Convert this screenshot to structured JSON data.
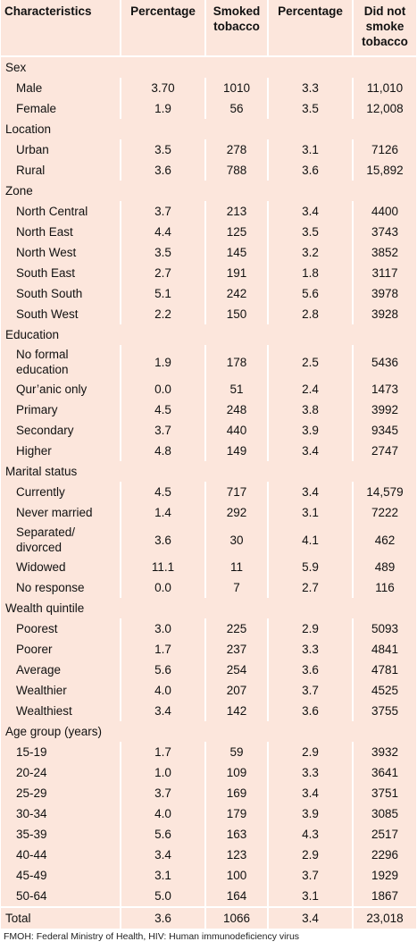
{
  "table": {
    "header": [
      "Characteristics",
      "Percentage",
      "Smoked tobacco",
      "Percentage",
      "Did not smoke tobacco"
    ],
    "rows": [
      [
        "Sex"
      ],
      [
        "Male",
        "3.70",
        "1010",
        "3.3",
        "11,010"
      ],
      [
        "Female",
        "1.9",
        "56",
        "3.5",
        "12,008"
      ],
      [
        "Location"
      ],
      [
        "Urban",
        "3.5",
        "278",
        "3.1",
        "7126"
      ],
      [
        "Rural",
        "3.6",
        "788",
        "3.6",
        "15,892"
      ],
      [
        "Zone"
      ],
      [
        "North Central",
        "3.7",
        "213",
        "3.4",
        "4400"
      ],
      [
        "North East",
        "4.4",
        "125",
        "3.5",
        "3743"
      ],
      [
        "North West",
        "3.5",
        "145",
        "3.2",
        "3852"
      ],
      [
        "South East",
        "2.7",
        "191",
        "1.8",
        "3117"
      ],
      [
        "South South",
        "5.1",
        "242",
        "5.6",
        "3978"
      ],
      [
        "South West",
        "2.2",
        "150",
        "2.8",
        "3928"
      ],
      [
        "Education"
      ],
      [
        "No formal education",
        "1.9",
        "178",
        "2.5",
        "5436"
      ],
      [
        "Qur’anic only",
        "0.0",
        "51",
        "2.4",
        "1473"
      ],
      [
        "Primary",
        "4.5",
        "248",
        "3.8",
        "3992"
      ],
      [
        "Secondary",
        "3.7",
        "440",
        "3.9",
        "9345"
      ],
      [
        "Higher",
        "4.8",
        "149",
        "3.4",
        "2747"
      ],
      [
        "Marital status"
      ],
      [
        "Currently",
        "4.5",
        "717",
        "3.4",
        "14,579"
      ],
      [
        "Never married",
        "1.4",
        "292",
        "3.1",
        "7222"
      ],
      [
        "Separated/ divorced",
        "3.6",
        "30",
        "4.1",
        "462"
      ],
      [
        "Widowed",
        "11.1",
        "11",
        "5.9",
        "489"
      ],
      [
        "No response",
        "0.0",
        "7",
        "2.7",
        "116"
      ],
      [
        "Wealth quintile"
      ],
      [
        "Poorest",
        "3.0",
        "225",
        "2.9",
        "5093"
      ],
      [
        "Poorer",
        "1.7",
        "237",
        "3.3",
        "4841"
      ],
      [
        "Average",
        "5.6",
        "254",
        "3.6",
        "4781"
      ],
      [
        "Wealthier",
        "4.0",
        "207",
        "3.7",
        "4525"
      ],
      [
        "Wealthiest",
        "3.4",
        "142",
        "3.6",
        "3755"
      ],
      [
        "Age group (years)"
      ],
      [
        "15-19",
        "1.7",
        "59",
        "2.9",
        "3932"
      ],
      [
        "20-24",
        "1.0",
        "109",
        "3.3",
        "3641"
      ],
      [
        "25-29",
        "3.7",
        "169",
        "3.4",
        "3751"
      ],
      [
        "30-34",
        "4.0",
        "179",
        "3.9",
        "3085"
      ],
      [
        "35-39",
        "5.6",
        "163",
        "4.3",
        "2517"
      ],
      [
        "40-44",
        "3.4",
        "123",
        "2.9",
        "2296"
      ],
      [
        "45-49",
        "3.1",
        "100",
        "3.7",
        "1929"
      ],
      [
        "50-64",
        "5.0",
        "164",
        "3.1",
        "1867"
      ],
      [
        "Total",
        "3.6",
        "1066",
        "3.4",
        "23,018"
      ]
    ]
  },
  "footnote": "FMOH: Federal Ministry of Health, HIV: Human immunodeficiency virus"
}
